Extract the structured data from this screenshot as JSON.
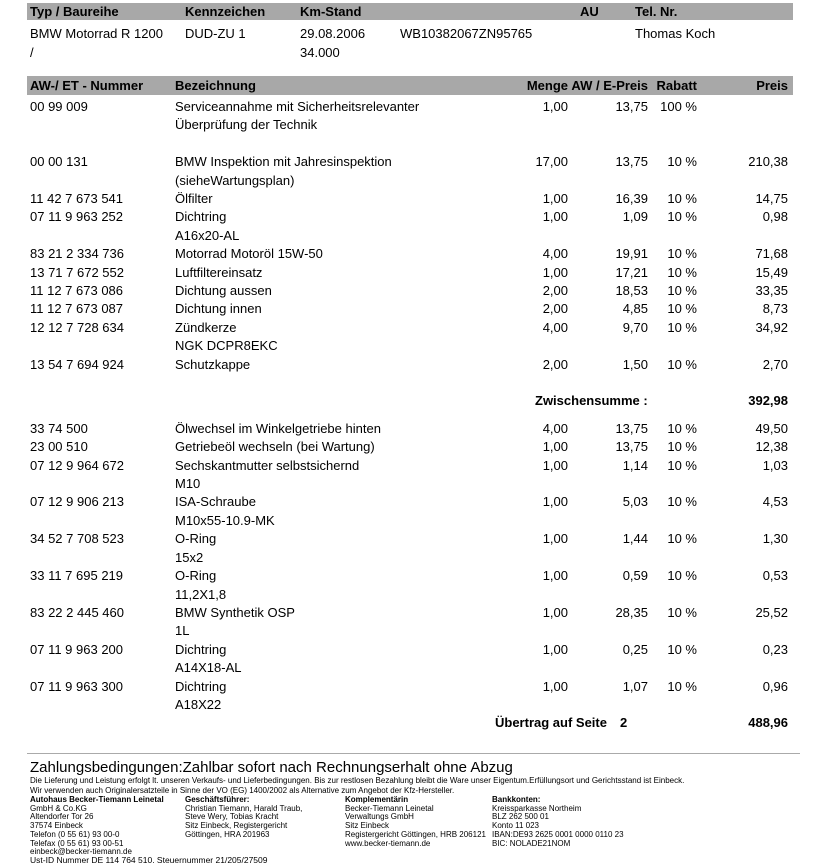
{
  "vehicle_header": {
    "labels": {
      "type": "Typ / Baureihe",
      "plate": "Kennzeichen",
      "km": "Km-Stand",
      "au": "AU",
      "tel": "Tel. Nr."
    },
    "values": {
      "type_line1": "BMW Motorrad R 1200",
      "type_line2": "/",
      "plate": "DUD-ZU 1",
      "km_date": "29.08.2006",
      "km_value": "34.000",
      "vin": "WB10382067ZN95765",
      "tel": "Thomas Koch"
    }
  },
  "table": {
    "headers": {
      "number": "AW-/ ET - Nummer",
      "description": "Bezeichnung",
      "qty": "Menge",
      "unit_price": "AW / E-Preis",
      "discount": "Rabatt",
      "price": "Preis"
    },
    "items_part1": [
      {
        "number": "00 99 009",
        "description": "Serviceannahme mit Sicherheitsrelevanter",
        "description2": "Überprüfung der Technik",
        "qty": "1,00",
        "unit_price": "13,75",
        "discount": "100 %",
        "price": ""
      },
      {
        "number": "00 00 131",
        "description": "BMW Inspektion mit Jahresinspektion",
        "description2": "(sieheWartungsplan)",
        "qty": "17,00",
        "unit_price": "13,75",
        "discount": "10 %",
        "price": "210,38",
        "spacer_before": true
      },
      {
        "number": "11 42 7 673 541",
        "description": "Ölfilter",
        "qty": "1,00",
        "unit_price": "16,39",
        "discount": "10 %",
        "price": "14,75"
      },
      {
        "number": "07 11 9 963 252",
        "description": "Dichtring",
        "description2": "A16x20-AL",
        "qty": "1,00",
        "unit_price": "1,09",
        "discount": "10 %",
        "price": "0,98"
      },
      {
        "number": "83 21 2 334 736",
        "description": "Motorrad Motoröl 15W-50",
        "qty": "4,00",
        "unit_price": "19,91",
        "discount": "10 %",
        "price": "71,68"
      },
      {
        "number": "13 71 7 672 552",
        "description": "Luftfiltereinsatz",
        "qty": "1,00",
        "unit_price": "17,21",
        "discount": "10 %",
        "price": "15,49"
      },
      {
        "number": "11 12 7 673 086",
        "description": "Dichtung aussen",
        "qty": "2,00",
        "unit_price": "18,53",
        "discount": "10 %",
        "price": "33,35"
      },
      {
        "number": "11 12 7 673 087",
        "description": "Dichtung innen",
        "qty": "2,00",
        "unit_price": "4,85",
        "discount": "10 %",
        "price": "8,73"
      },
      {
        "number": "12 12 7 728 634",
        "description": "Zündkerze",
        "description2": "NGK DCPR8EKC",
        "qty": "4,00",
        "unit_price": "9,70",
        "discount": "10 %",
        "price": "34,92"
      },
      {
        "number": "13 54 7 694 924",
        "description": "Schutzkappe",
        "qty": "2,00",
        "unit_price": "1,50",
        "discount": "10 %",
        "price": "2,70"
      }
    ],
    "subtotal": {
      "label": "Zwischensumme :",
      "value": "392,98"
    },
    "items_part2": [
      {
        "number": "33 74 500",
        "description": "Ölwechsel im Winkelgetriebe hinten",
        "qty": "4,00",
        "unit_price": "13,75",
        "discount": "10 %",
        "price": "49,50"
      },
      {
        "number": "23 00 510",
        "description": "Getriebeöl wechseln (bei Wartung)",
        "qty": "1,00",
        "unit_price": "13,75",
        "discount": "10 %",
        "price": "12,38"
      },
      {
        "number": "07 12 9 964 672",
        "description": "Sechskantmutter selbstsichernd",
        "description2": "M10",
        "qty": "1,00",
        "unit_price": "1,14",
        "discount": "10 %",
        "price": "1,03"
      },
      {
        "number": "07 12 9 906 213",
        "description": "ISA-Schraube",
        "description2": "M10x55-10.9-MK",
        "qty": "1,00",
        "unit_price": "5,03",
        "discount": "10 %",
        "price": "4,53"
      },
      {
        "number": "34 52 7 708 523",
        "description": "O-Ring",
        "description2": "15x2",
        "qty": "1,00",
        "unit_price": "1,44",
        "discount": "10 %",
        "price": "1,30"
      },
      {
        "number": "33 11 7 695 219",
        "description": "O-Ring",
        "description2": "11,2X1,8",
        "qty": "1,00",
        "unit_price": "0,59",
        "discount": "10 %",
        "price": "0,53"
      },
      {
        "number": "83 22 2 445 460",
        "description": "BMW Synthetik OSP",
        "description2": "1L",
        "qty": "1,00",
        "unit_price": "28,35",
        "discount": "10 %",
        "price": "25,52"
      },
      {
        "number": "07 11 9 963 200",
        "description": "Dichtring",
        "description2": "A14X18-AL",
        "qty": "1,00",
        "unit_price": "0,25",
        "discount": "10 %",
        "price": "0,23"
      },
      {
        "number": "07 11 9 963 300",
        "description": "Dichtring",
        "description2": "A18X22",
        "qty": "1,00",
        "unit_price": "1,07",
        "discount": "10 %",
        "price": "0,96"
      }
    ],
    "carryover": {
      "label": "Übertrag auf Seite",
      "page": "2",
      "value": "488,96"
    }
  },
  "footer": {
    "payment_terms": "Zahlungsbedingungen:Zahlbar sofort nach Rechnungserhalt ohne Abzug",
    "terms_line1": "Die Lieferung und Leistung erfolgt lt. unseren Verkaufs- und Lieferbedingungen. Bis zur restlosen Bezahlung bleibt die Ware unser Eigentum.Erfüllungsort und Gerichtsstand ist Einbeck.",
    "terms_line2": "Wir verwenden auch Originalersatzteile in Sinne der VO (EG) 1400/2002 als Alternative zum Angebot der Kfz-Hersteller.",
    "columns": [
      {
        "title": "Autohaus Becker-Tiemann Leinetal",
        "lines": [
          "GmbH & Co.KG",
          "Altendorfer Tor 26",
          "37574 Einbeck",
          "Telefon (0 55 61) 93 00-0",
          "Telefax (0 55 61) 93 00-51",
          "einbeck@becker-tiemann.de"
        ]
      },
      {
        "title": "Geschäftsführer:",
        "lines": [
          "Christian Tiemann, Harald Traub,",
          "Steve Wery, Tobias Kracht",
          "Sitz Einbeck, Registergericht",
          "Göttingen, HRA 201963"
        ]
      },
      {
        "title": "Komplementärin",
        "lines": [
          "Becker-Tiemann Leinetal",
          "Verwaltungs GmbH",
          "Sitz Einbeck",
          "Registergericht Göttingen, HRB 206121",
          "www.becker-tiemann.de"
        ]
      },
      {
        "title": "Bankkonten:",
        "lines": [
          "Kreissparkasse Northeim",
          "BLZ 262 500 01",
          "Konto 11 023",
          "IBAN:DE93 2625 0001 0000 0110 23",
          "BIC: NOLADE21NOM"
        ]
      }
    ],
    "tax_line": "Ust-ID Nummer DE 114 764 510. Steuernummer 21/205/27509"
  },
  "colors": {
    "header_bar": "#a8a8a8",
    "text": "#000000"
  }
}
